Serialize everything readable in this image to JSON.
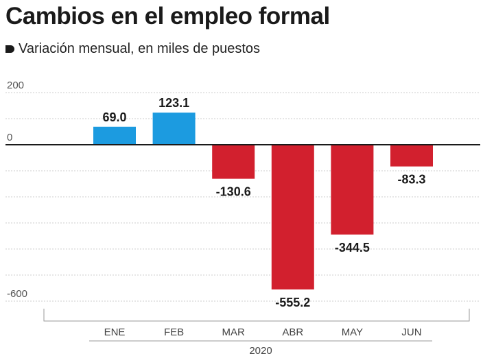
{
  "header": {
    "title": "Cambios en el empleo formal",
    "subtitle": "Variación mensual, en miles de puestos"
  },
  "chart_data": {
    "type": "bar",
    "title": "Cambios en el empleo formal",
    "subtitle": "Variación mensual, en miles de puestos",
    "categories": [
      "ENE",
      "FEB",
      "MAR",
      "ABR",
      "MAY",
      "JUN"
    ],
    "values": [
      69.0,
      123.1,
      -130.6,
      -555.2,
      -344.5,
      -83.3
    ],
    "value_labels": [
      "69.0",
      "123.1",
      "-130.6",
      "-555.2",
      "-344.5",
      "-83.3"
    ],
    "x_group_label": "2020",
    "y_ticks": [
      200,
      0,
      -600
    ],
    "y_tick_labels": [
      "200",
      "0",
      "-600"
    ],
    "ylim": [
      -600,
      200
    ],
    "grid": true,
    "colors": {
      "positive": "#1c9be0",
      "negative": "#d2202e",
      "zero_line": "#1a1a1a",
      "grid": "#cccccc"
    }
  }
}
